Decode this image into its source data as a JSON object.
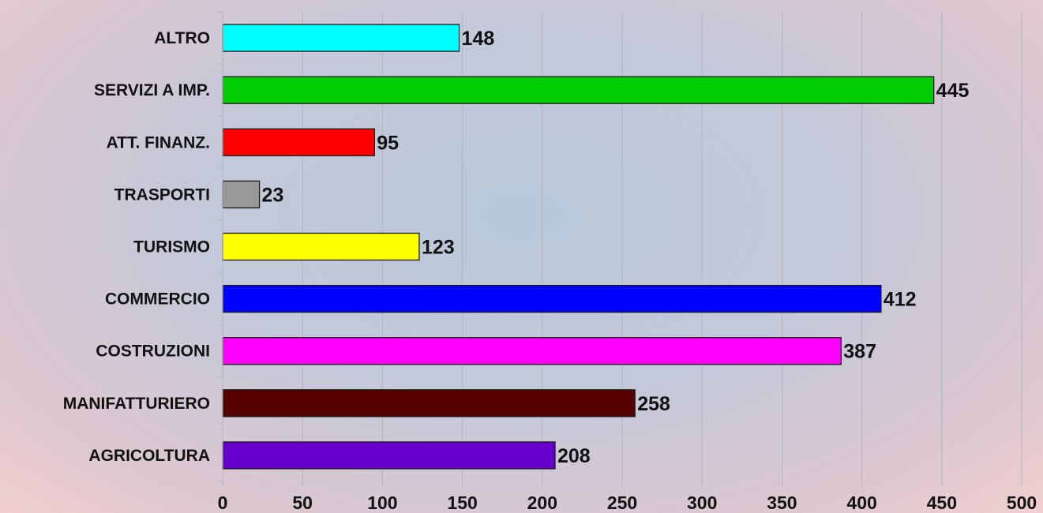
{
  "chart_data": {
    "type": "bar",
    "orientation": "horizontal",
    "categories": [
      "AGRICOLTURA",
      "MANIFATTURIERO",
      "COSTRUZIONI",
      "COMMERCIO",
      "TURISMO",
      "TRASPORTI",
      "ATT. FINANZ.",
      "SERVIZI A IMP.",
      "ALTRO"
    ],
    "values": [
      208,
      258,
      387,
      412,
      123,
      23,
      95,
      445,
      148
    ],
    "colors": [
      "#6600cc",
      "#550000",
      "#ff00ff",
      "#0000ff",
      "#ffff00",
      "#999999",
      "#ff0000",
      "#00cc00",
      "#00ffff"
    ],
    "title": "",
    "xlabel": "",
    "ylabel": "",
    "xlim": [
      0,
      500
    ],
    "x_ticks": [
      0,
      50,
      100,
      150,
      200,
      250,
      300,
      350,
      400,
      450,
      500
    ],
    "grid": "vertical",
    "legend": "none",
    "data_labels": true
  }
}
